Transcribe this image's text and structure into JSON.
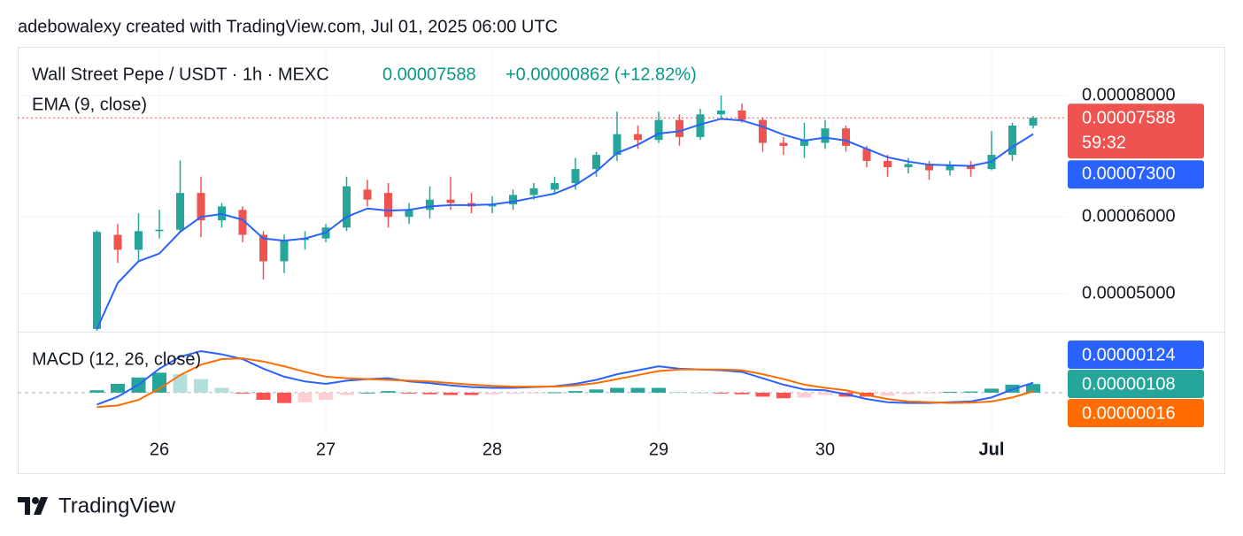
{
  "header": {
    "attribution": "adebowalexy created with TradingView.com, Jul 01, 2025 06:00 UTC",
    "last_price": "0.00007588",
    "change": "+0.00000862 (+12.82%)"
  },
  "footer": {
    "brand": "TradingView"
  },
  "chart_data": [
    {
      "type": "candlestick",
      "title": "Wall Street Pepe / USDT · 1h · MEXC",
      "categories": [
        null,
        null,
        null,
        "26",
        null,
        null,
        null,
        null,
        null,
        null,
        null,
        "27",
        null,
        null,
        null,
        null,
        null,
        null,
        null,
        "28",
        null,
        null,
        null,
        null,
        null,
        null,
        null,
        "29",
        null,
        null,
        null,
        null,
        null,
        null,
        null,
        "30",
        null,
        null,
        null,
        null,
        null,
        null,
        null,
        "Jul",
        null,
        null
      ],
      "open": [
        4.6e-05,
        5.75e-05,
        5.55e-05,
        5.8e-05,
        5.82e-05,
        6.35e-05,
        5.95e-05,
        6.1e-05,
        5.75e-05,
        5.4e-05,
        5.68e-05,
        5.7e-05,
        5.85e-05,
        6.4e-05,
        6.35e-05,
        6e-05,
        6.1e-05,
        6.25e-05,
        6.2e-05,
        6.15e-05,
        6.18e-05,
        6.32e-05,
        6.4e-05,
        6.5e-05,
        6.72e-05,
        6.95e-05,
        7.3e-05,
        7.2e-05,
        7.55e-05,
        7.25e-05,
        7.65e-05,
        7.72e-05,
        7.55e-05,
        7.15e-05,
        7.1e-05,
        7.15e-05,
        7.4e-05,
        7.05e-05,
        6.85e-05,
        6.75e-05,
        6.8e-05,
        6.7e-05,
        6.78e-05,
        6.72e-05,
        6.95e-05,
        7.45e-05
      ],
      "high": [
        5.81e-05,
        5.9e-05,
        6.05e-05,
        6.1e-05,
        6.86e-05,
        6.6e-05,
        6.2e-05,
        6.15e-05,
        5.8e-05,
        5.75e-05,
        5.8e-05,
        5.9e-05,
        6.6e-05,
        6.55e-05,
        6.5e-05,
        6.2e-05,
        6.45e-05,
        6.6e-05,
        6.35e-05,
        6.3e-05,
        6.4e-05,
        6.5e-05,
        6.6e-05,
        6.9e-05,
        7e-05,
        7.7e-05,
        7.45e-05,
        7.7e-05,
        7.65e-05,
        7.75e-05,
        8e-05,
        7.85e-05,
        7.6e-05,
        7.25e-05,
        7.5e-05,
        7.55e-05,
        7.45e-05,
        7.1e-05,
        6.95e-05,
        6.9e-05,
        6.85e-05,
        6.85e-05,
        6.85e-05,
        7.35e-05,
        7.5e-05,
        7.62e-05
      ],
      "low": [
        4.58e-05,
        5.38e-05,
        5.4e-05,
        5.7e-05,
        5.78e-05,
        5.72e-05,
        5.85e-05,
        5.65e-05,
        5.17e-05,
        5.25e-05,
        5.55e-05,
        5.65e-05,
        5.8e-05,
        6.15e-05,
        5.85e-05,
        5.9e-05,
        5.98e-05,
        6.1e-05,
        6.05e-05,
        6.05e-05,
        6.1e-05,
        6.25e-05,
        6.35e-05,
        6.4e-05,
        6.6e-05,
        6.85e-05,
        7.05e-05,
        7.15e-05,
        7.1e-05,
        7.2e-05,
        7.55e-05,
        7.5e-05,
        7e-05,
        6.95e-05,
        6.9e-05,
        7.05e-05,
        7e-05,
        6.75e-05,
        6.6e-05,
        6.65e-05,
        6.55e-05,
        6.62e-05,
        6.6e-05,
        6.7e-05,
        6.85e-05,
        7.4e-05
      ],
      "close": [
        5.79e-05,
        5.55e-05,
        5.8e-05,
        5.82e-05,
        6.35e-05,
        5.95e-05,
        6.15e-05,
        5.75e-05,
        5.4e-05,
        5.68e-05,
        5.7e-05,
        5.85e-05,
        6.45e-05,
        6.25e-05,
        6e-05,
        6.1e-05,
        6.25e-05,
        6.2e-05,
        6.15e-05,
        6.18e-05,
        6.32e-05,
        6.42e-05,
        6.5e-05,
        6.72e-05,
        6.95e-05,
        7.3e-05,
        7.2e-05,
        7.55e-05,
        7.25e-05,
        7.65e-05,
        7.72e-05,
        7.55e-05,
        7.15e-05,
        7.1e-05,
        7.2e-05,
        7.4e-05,
        7.1e-05,
        6.85e-05,
        6.75e-05,
        6.8e-05,
        6.7e-05,
        6.78e-05,
        6.72e-05,
        6.95e-05,
        7.45e-05,
        7.588e-05
      ],
      "colors": {
        "up": "#26a69a",
        "down": "#ef5350"
      },
      "last_price_label": "0.00007588",
      "countdown": "59:32",
      "series": [
        {
          "name": "EMA (9, close)",
          "color": "#2962ff",
          "last_value_label": "0.00007300",
          "values": [
            4.6e-05,
            5.13e-05,
            5.4e-05,
            5.5e-05,
            5.79e-05,
            6e-05,
            6.04e-05,
            5.96e-05,
            5.7e-05,
            5.67e-05,
            5.7e-05,
            5.78e-05,
            6e-05,
            6.12e-05,
            6.09e-05,
            6.1e-05,
            6.15e-05,
            6.17e-05,
            6.17e-05,
            6.18e-05,
            6.22e-05,
            6.28e-05,
            6.34e-05,
            6.47e-05,
            6.68e-05,
            6.98e-05,
            7.12e-05,
            7.31e-05,
            7.35e-05,
            7.47e-05,
            7.57e-05,
            7.54e-05,
            7.43e-05,
            7.29e-05,
            7.19e-05,
            7.24e-05,
            7.19e-05,
            7.05e-05,
            6.91e-05,
            6.84e-05,
            6.79e-05,
            6.78e-05,
            6.77e-05,
            6.84e-05,
            7.08e-05,
            7.3e-05
          ]
        }
      ],
      "ylim": [
        4.57e-05,
        8.94e-05
      ],
      "yticks": [
        {
          "value": 5e-05,
          "label": "0.00005000"
        },
        {
          "value": 6e-05,
          "label": "0.00006000"
        },
        {
          "value": 8e-05,
          "label": "0.00008000"
        }
      ],
      "log_scale": true,
      "grid": true
    },
    {
      "type": "macd",
      "title": "MACD (12, 26, close)",
      "series": [
        {
          "color": "#2962ff",
          "last_value_label": "0.00000124",
          "values": [
            -1.5e-06,
            -5e-07,
            1e-06,
            3e-06,
            4.5e-06,
            5.2e-06,
            4.8e-06,
            4.2e-06,
            3e-06,
            2e-06,
            1.4e-06,
            1.1e-06,
            1.5e-06,
            1.7e-06,
            1.8e-06,
            1.4e-06,
            1.2e-06,
            9e-07,
            7e-07,
            6e-07,
            6e-07,
            7e-07,
            8e-07,
            1.1e-06,
            1.6e-06,
            2.3e-06,
            2.8e-06,
            3.3e-06,
            3e-06,
            2.9e-06,
            2.8e-06,
            2.6e-06,
            1.8e-06,
            1e-06,
            4e-07,
            3e-07,
            -2e-07,
            -8e-07,
            -1.2e-06,
            -1.3e-06,
            -1.3e-06,
            -1.2e-06,
            -1.1e-06,
            -6e-07,
            4e-07,
            1.24e-06
          ]
        },
        {
          "color": "#ff6d00",
          "last_value_label": "0.00000016",
          "values": [
            -1.8e-06,
            -1.6e-06,
            -9e-07,
            5e-07,
            2.2e-06,
            3.5e-06,
            4.2e-06,
            4.3e-06,
            3.9e-06,
            3.3e-06,
            2.6e-06,
            2e-06,
            1.8e-06,
            1.7e-06,
            1.6e-06,
            1.5e-06,
            1.4e-06,
            1.2e-06,
            1e-06,
            8.5e-07,
            7.5e-07,
            7.5e-07,
            7.5e-07,
            9e-07,
            1.2e-06,
            1.7e-06,
            2.2e-06,
            2.7e-06,
            2.9e-06,
            2.9e-06,
            2.9e-06,
            2.8e-06,
            2.3e-06,
            1.7e-06,
            1e-06,
            6e-07,
            3e-07,
            -3e-07,
            -8e-07,
            -1.1e-06,
            -1.2e-06,
            -1.3e-06,
            -1.25e-06,
            -1.1e-06,
            -6e-07,
            1.6e-07
          ]
        }
      ],
      "histogram": {
        "color": "#26a69a",
        "last_value_label": "0.00000108",
        "colors": {
          "up_rising": "#26a69a",
          "up_falling": "#b2dfdb",
          "down_falling": "#ff5252",
          "down_rising": "#ffcdd2"
        },
        "values": [
          3e-07,
          1.1e-06,
          1.9e-06,
          2.5e-06,
          2.3e-06,
          1.7e-06,
          6e-07,
          -1e-07,
          -9e-07,
          -1.3e-06,
          -1.2e-06,
          -9e-07,
          -3e-07,
          0,
          2e-07,
          -1e-07,
          -2e-07,
          -3e-07,
          -3e-07,
          -2.5e-07,
          -1.5e-07,
          -5e-08,
          5e-08,
          2e-07,
          4e-07,
          6e-07,
          6e-07,
          6e-07,
          1e-07,
          0,
          -1e-07,
          -2e-07,
          -5e-07,
          -7e-07,
          -6e-07,
          -3e-07,
          -5e-07,
          -5e-07,
          -4e-07,
          -2e-07,
          -1e-07,
          1e-07,
          1.5e-07,
          5e-07,
          1e-06,
          1.08e-06
        ]
      },
      "ylim": [
        -5.1e-06,
        7.3e-06
      ]
    }
  ]
}
